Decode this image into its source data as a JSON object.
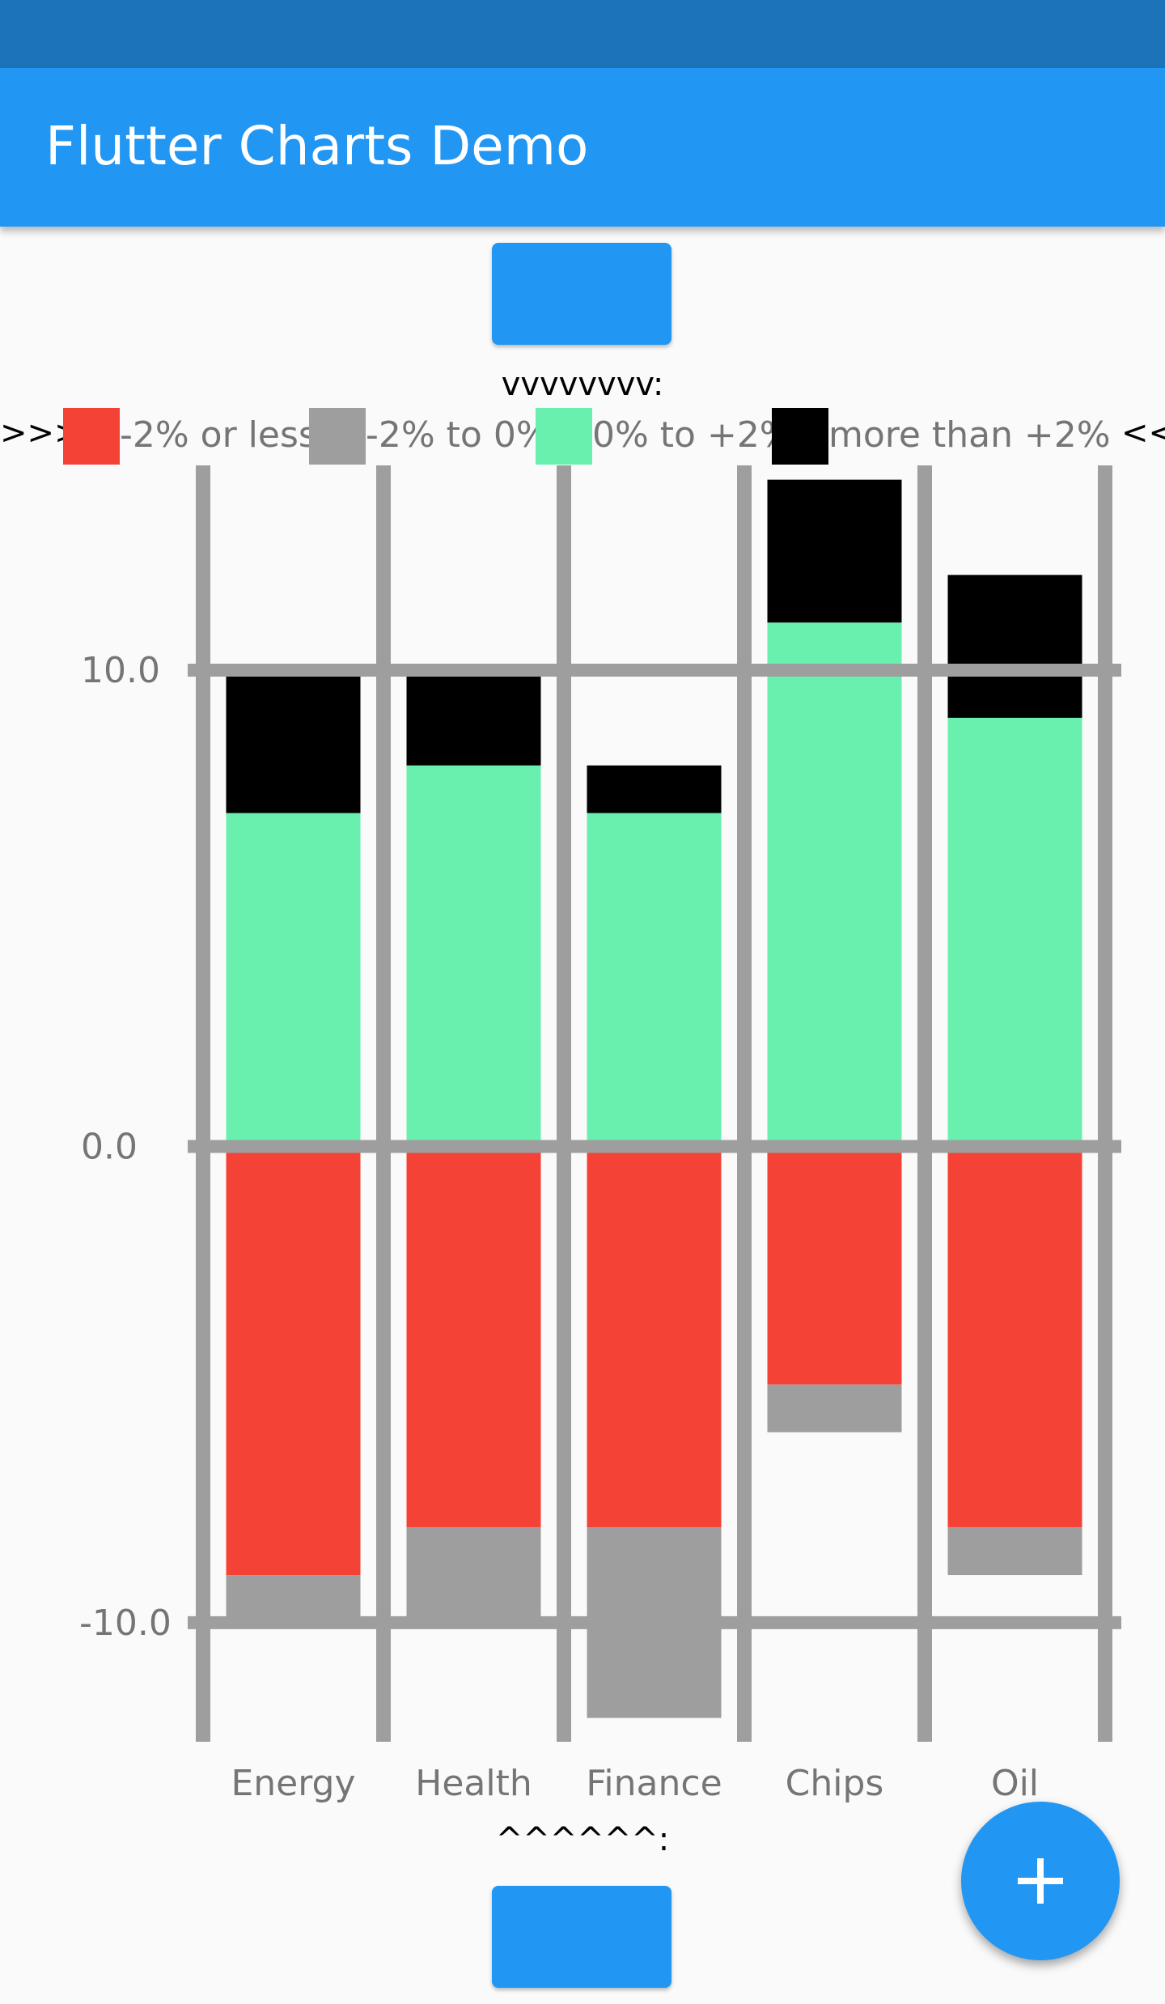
{
  "app": {
    "title": "Flutter Charts Demo"
  },
  "markers": {
    "top": "vvvvvvvv:",
    "bottom": "^^^^^^:"
  },
  "legend": {
    "left_edge": ">>>",
    "right_edge": "<<",
    "items": [
      {
        "label": "-2% or less",
        "color": "#f44336"
      },
      {
        "label": "-2% to 0%",
        "color": "#9e9e9e"
      },
      {
        "label": "0% to +2%",
        "color": "#69f0ae"
      },
      {
        "label": "more than +2%",
        "color": "#000000"
      }
    ]
  },
  "colors": {
    "appbar": "#2196f3",
    "statusbar": "#1b73b9",
    "grid": "#9e9e9e",
    "axis_text": "#757575"
  },
  "fab": {
    "icon": "add-icon"
  },
  "chart_data": {
    "type": "bar",
    "stacked": true,
    "categories": [
      "Energy",
      "Health",
      "Finance",
      "Chips",
      "Oil"
    ],
    "series": [
      {
        "name": "-2% or less",
        "color": "#f44336",
        "values": [
          -9,
          -8,
          -8,
          -5,
          -8
        ]
      },
      {
        "name": "-2% to 0%",
        "color": "#9e9e9e",
        "values": [
          -1,
          -2,
          -4,
          -1,
          -1
        ]
      },
      {
        "name": "0% to +2%",
        "color": "#69f0ae",
        "values": [
          7,
          8,
          7,
          11,
          9
        ]
      },
      {
        "name": "more than +2%",
        "color": "#000000",
        "values": [
          3,
          2,
          1,
          3,
          3
        ]
      }
    ],
    "y_ticks": [
      "10.0",
      "0.0",
      "-10.0"
    ],
    "y_tick_values": [
      10,
      0,
      -10
    ],
    "ylim": [
      -12.5,
      14.3
    ],
    "grid": true,
    "legend_position": "top"
  }
}
